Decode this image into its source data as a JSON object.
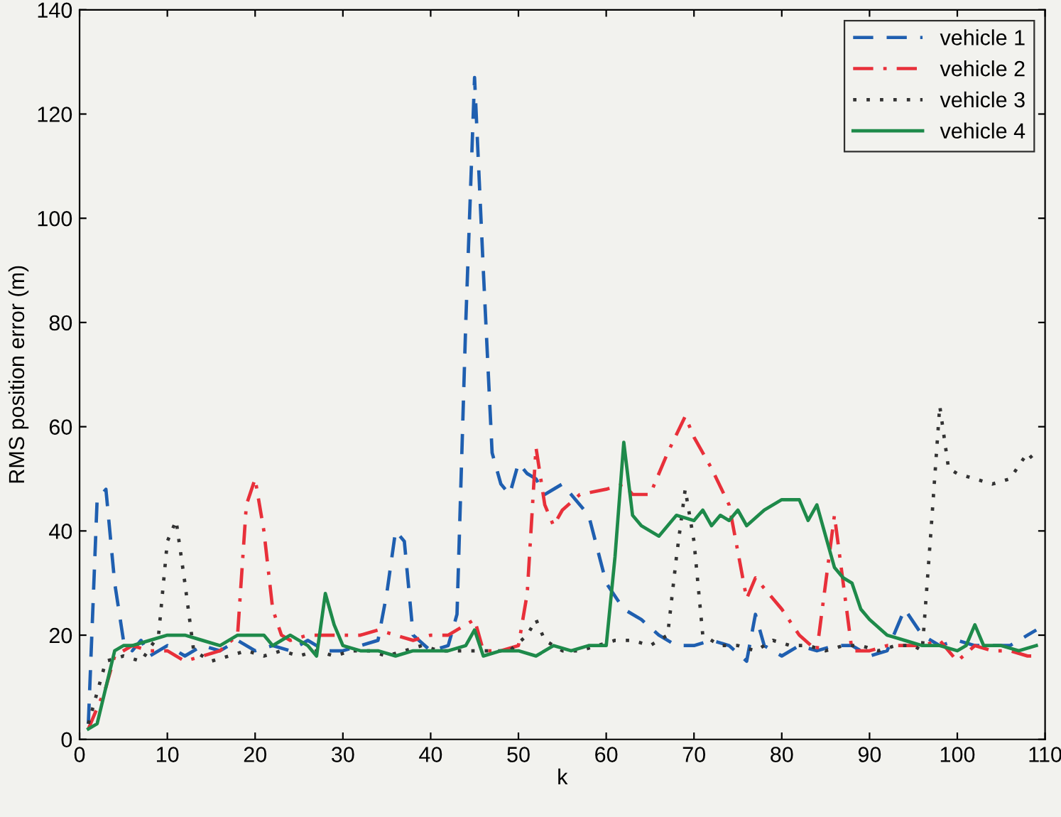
{
  "chart_data": {
    "type": "line",
    "xlabel": "k",
    "ylabel": "RMS position error (m)",
    "xlim": [
      0,
      110
    ],
    "ylim": [
      0,
      140
    ],
    "xticks": [
      0,
      10,
      20,
      30,
      40,
      50,
      60,
      70,
      80,
      90,
      100,
      110
    ],
    "yticks": [
      0,
      20,
      40,
      60,
      80,
      100,
      120,
      140
    ],
    "legend": "top right",
    "grid": false,
    "marker": "none",
    "series": [
      {
        "name": "vehicle 1",
        "color": "#1f5fb0",
        "line_style": "dashed",
        "x": [
          1,
          2,
          3,
          4,
          5,
          6,
          7,
          8,
          10,
          12,
          14,
          16,
          18,
          20,
          22,
          24,
          26,
          28,
          30,
          32,
          34,
          35,
          36,
          37,
          38,
          40,
          42,
          43,
          44,
          45,
          46,
          47,
          48,
          49,
          50,
          51,
          52,
          53,
          54,
          55,
          56,
          58,
          60,
          62,
          64,
          66,
          68,
          70,
          72,
          74,
          76,
          77,
          78,
          80,
          82,
          84,
          86,
          88,
          90,
          92,
          94,
          96,
          98,
          100,
          102,
          104,
          106,
          108,
          109
        ],
        "values": [
          3,
          46,
          48,
          30,
          19,
          17,
          19,
          16,
          18,
          16,
          18,
          17,
          19,
          17,
          18,
          17,
          19,
          17,
          17,
          18,
          19,
          28,
          40,
          38,
          20,
          17,
          18,
          24,
          80,
          127,
          90,
          55,
          49,
          47,
          53,
          51,
          50,
          47,
          48,
          49,
          47,
          43,
          30,
          25,
          23,
          20,
          18,
          18,
          19,
          18,
          15,
          24,
          18,
          16,
          18,
          17,
          18,
          18,
          16,
          17,
          25,
          20,
          18,
          19,
          18,
          18,
          18,
          20,
          21
        ]
      },
      {
        "name": "vehicle 2",
        "color": "#e8303a",
        "line_style": "dashdot",
        "x": [
          1,
          3,
          4,
          6,
          8,
          10,
          12,
          14,
          16,
          18,
          19,
          20,
          21,
          22,
          23,
          24,
          26,
          28,
          30,
          32,
          34,
          36,
          38,
          40,
          42,
          44,
          45,
          46,
          48,
          50,
          51,
          52,
          53,
          54,
          55,
          57,
          60,
          62,
          63,
          65,
          67,
          69,
          70,
          72,
          74,
          76,
          77,
          80,
          82,
          84,
          85,
          86,
          87,
          88,
          90,
          92,
          94,
          96,
          98,
          100,
          102,
          104,
          106,
          108,
          109
        ],
        "values": [
          2,
          10,
          16,
          18,
          17,
          17,
          15,
          16,
          17,
          20,
          45,
          50,
          40,
          25,
          20,
          19,
          20,
          20,
          20,
          20,
          21,
          20,
          19,
          20,
          20,
          22,
          23,
          17,
          17,
          18,
          28,
          56,
          45,
          41,
          44,
          47,
          48,
          49,
          47,
          47,
          55,
          62,
          58,
          52,
          45,
          27,
          31,
          25,
          20,
          17,
          30,
          43,
          30,
          17,
          17,
          18,
          18,
          18,
          19,
          15,
          18,
          17,
          17,
          16,
          16
        ]
      },
      {
        "name": "vehicle 3",
        "color": "#333333",
        "line_style": "dotted",
        "x": [
          1,
          3,
          5,
          7,
          9,
          10,
          11,
          12,
          13,
          15,
          17,
          19,
          21,
          23,
          25,
          27,
          29,
          31,
          33,
          35,
          37,
          39,
          41,
          43,
          45,
          47,
          49,
          51,
          52,
          53,
          55,
          57,
          59,
          61,
          63,
          65,
          67,
          68,
          69,
          70,
          71,
          73,
          75,
          77,
          79,
          81,
          83,
          85,
          87,
          89,
          91,
          93,
          95,
          96,
          97,
          98,
          99,
          100,
          102,
          104,
          106,
          108,
          109
        ],
        "values": [
          3,
          15,
          16,
          15,
          20,
          38,
          42,
          30,
          17,
          15,
          16,
          17,
          16,
          17,
          16,
          17,
          16,
          17,
          17,
          16,
          17,
          18,
          17,
          17,
          17,
          17,
          17,
          20,
          23,
          19,
          17,
          17,
          18,
          19,
          19,
          18,
          20,
          35,
          48,
          38,
          20,
          18,
          18,
          17,
          19,
          18,
          18,
          17,
          18,
          18,
          17,
          18,
          18,
          17,
          40,
          64,
          52,
          51,
          50,
          49,
          50,
          55,
          53
        ]
      },
      {
        "name": "vehicle 4",
        "color": "#1e8a4a",
        "line_style": "solid",
        "x": [
          1,
          2,
          3,
          4,
          5,
          6,
          8,
          10,
          12,
          14,
          16,
          18,
          20,
          21,
          22,
          23,
          24,
          26,
          27,
          28,
          29,
          30,
          32,
          34,
          36,
          38,
          40,
          42,
          44,
          45,
          46,
          48,
          50,
          52,
          54,
          56,
          58,
          60,
          61,
          62,
          63,
          64,
          66,
          68,
          70,
          71,
          72,
          73,
          74,
          75,
          76,
          78,
          80,
          82,
          83,
          84,
          86,
          87,
          88,
          89,
          90,
          92,
          94,
          96,
          98,
          100,
          101,
          102,
          103,
          105,
          107,
          109
        ],
        "values": [
          2,
          3,
          10,
          17,
          18,
          18,
          19,
          20,
          20,
          19,
          18,
          20,
          20,
          20,
          18,
          19,
          20,
          18,
          16,
          28,
          22,
          18,
          17,
          17,
          16,
          17,
          17,
          17,
          18,
          21,
          16,
          17,
          17,
          16,
          18,
          17,
          18,
          18,
          35,
          57,
          43,
          41,
          39,
          43,
          42,
          44,
          41,
          43,
          42,
          44,
          41,
          44,
          46,
          46,
          42,
          45,
          33,
          31,
          30,
          25,
          23,
          20,
          19,
          18,
          18,
          17,
          18,
          22,
          18,
          18,
          17,
          18
        ]
      }
    ]
  }
}
